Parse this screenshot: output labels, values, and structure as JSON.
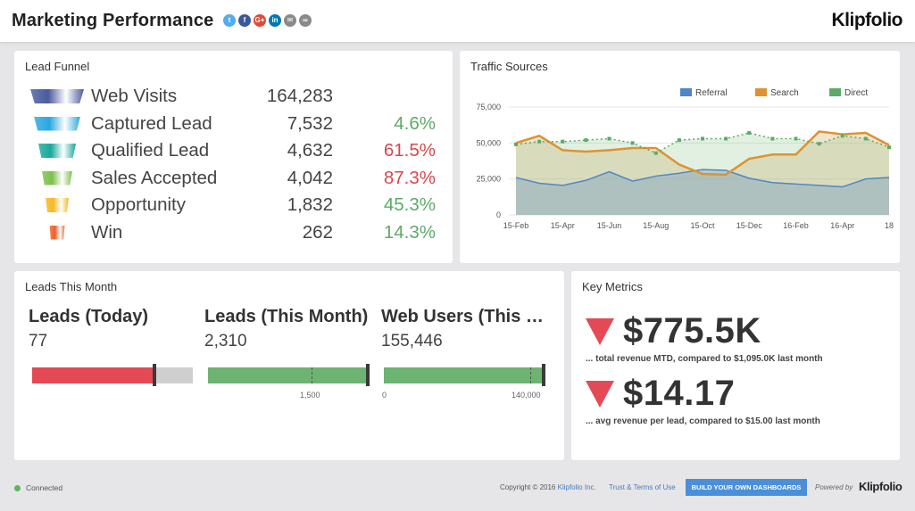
{
  "header": {
    "title": "Marketing Performance",
    "logo": "Klipfolio",
    "share_icons": [
      {
        "name": "twitter-icon",
        "glyph": "t",
        "color": "#55acee"
      },
      {
        "name": "facebook-icon",
        "glyph": "f",
        "color": "#3b5998"
      },
      {
        "name": "google-plus-icon",
        "glyph": "G+",
        "color": "#dd4b39"
      },
      {
        "name": "linkedin-icon",
        "glyph": "in",
        "color": "#0077b5"
      },
      {
        "name": "email-icon",
        "glyph": "✉",
        "color": "#8a8a8a"
      },
      {
        "name": "link-icon",
        "glyph": "∞",
        "color": "#8a8a8a"
      }
    ]
  },
  "funnel": {
    "title": "Lead Funnel",
    "rows": [
      {
        "label": "Web Visits",
        "value": "164,283",
        "pct": "",
        "icon_color": "#4a5b9e",
        "pct_color": ""
      },
      {
        "label": "Captured Lead",
        "value": "7,532",
        "pct": "4.6%",
        "icon_color": "#2aa7e0",
        "pct_color": "#5cab65"
      },
      {
        "label": "Qualified Lead",
        "value": "4,632",
        "pct": "61.5%",
        "icon_color": "#18a99a",
        "pct_color": "#d9474f"
      },
      {
        "label": "Sales Accepted",
        "value": "4,042",
        "pct": "87.3%",
        "icon_color": "#7cc04a",
        "pct_color": "#d9474f"
      },
      {
        "label": "Opportunity",
        "value": "1,832",
        "pct": "45.3%",
        "icon_color": "#f5b922",
        "pct_color": "#5cab65"
      },
      {
        "label": "Win",
        "value": "262",
        "pct": "14.3%",
        "icon_color": "#ec6128",
        "pct_color": "#5cab65"
      }
    ]
  },
  "traffic": {
    "title": "Traffic Sources",
    "chart_data": {
      "type": "line",
      "x": [
        "15-Feb",
        "",
        "15-Apr",
        "",
        "15-Jun",
        "",
        "15-Aug",
        "",
        "15-Oct",
        "",
        "15-Dec",
        "",
        "16-Feb",
        "",
        "16-Apr",
        "",
        "18"
      ],
      "series": [
        {
          "name": "Referral",
          "color": "#4f86c6",
          "values": [
            26000,
            22000,
            20500,
            24000,
            30000,
            23500,
            27000,
            29000,
            31500,
            31000,
            25500,
            22500,
            21500,
            20500,
            19500,
            25000,
            26000
          ]
        },
        {
          "name": "Search",
          "color": "#e0922e",
          "values": [
            50000,
            55000,
            45000,
            44000,
            45000,
            46500,
            46500,
            35000,
            28500,
            28000,
            39000,
            42000,
            42000,
            58000,
            56000,
            57000,
            48500
          ]
        },
        {
          "name": "Direct",
          "color": "#5cab65",
          "values": [
            49000,
            51000,
            51000,
            52000,
            53000,
            50000,
            43000,
            52000,
            53000,
            53000,
            57000,
            53000,
            53000,
            49500,
            55000,
            53000,
            47000
          ]
        }
      ],
      "ylim": [
        0,
        75000
      ],
      "yticks": [
        "75,000",
        "50,000",
        "25,000",
        "0"
      ],
      "legend": "top-right",
      "grid": true
    }
  },
  "leads": {
    "title": "Leads This Month",
    "kpis": [
      {
        "label": "Leads (Today)",
        "value": "77",
        "fill_fraction": 0.75,
        "fill_color": "#e34a55",
        "tick": ""
      },
      {
        "label": "Leads (This Month)",
        "value": "2,310",
        "fill_fraction": 1.0,
        "fill_color": "#6db372",
        "tick": "1,500"
      },
      {
        "label": "Web Users (This Month)",
        "value": "155,446",
        "fill_fraction": 1.0,
        "fill_color": "#6db372",
        "tick_start": "0",
        "tick": "140,000"
      }
    ]
  },
  "metrics": {
    "title": "Key Metrics",
    "items": [
      {
        "value": "$775.5K",
        "desc": "... total revenue MTD, compared to $1,095.0K last month",
        "trend": "down"
      },
      {
        "value": "$14.17",
        "desc": "... avg revenue per lead, compared to $15.00 last month",
        "trend": "down"
      }
    ]
  },
  "footer": {
    "status": "Connected",
    "copyright_prefix": "Copyright © 2016 ",
    "copyright_link": "Klipfolio Inc.",
    "terms": "Trust & Terms of Use",
    "build_button": "BUILD YOUR OWN DASHBOARDS",
    "powered_by": "Powered by",
    "logo": "Klipfolio"
  }
}
